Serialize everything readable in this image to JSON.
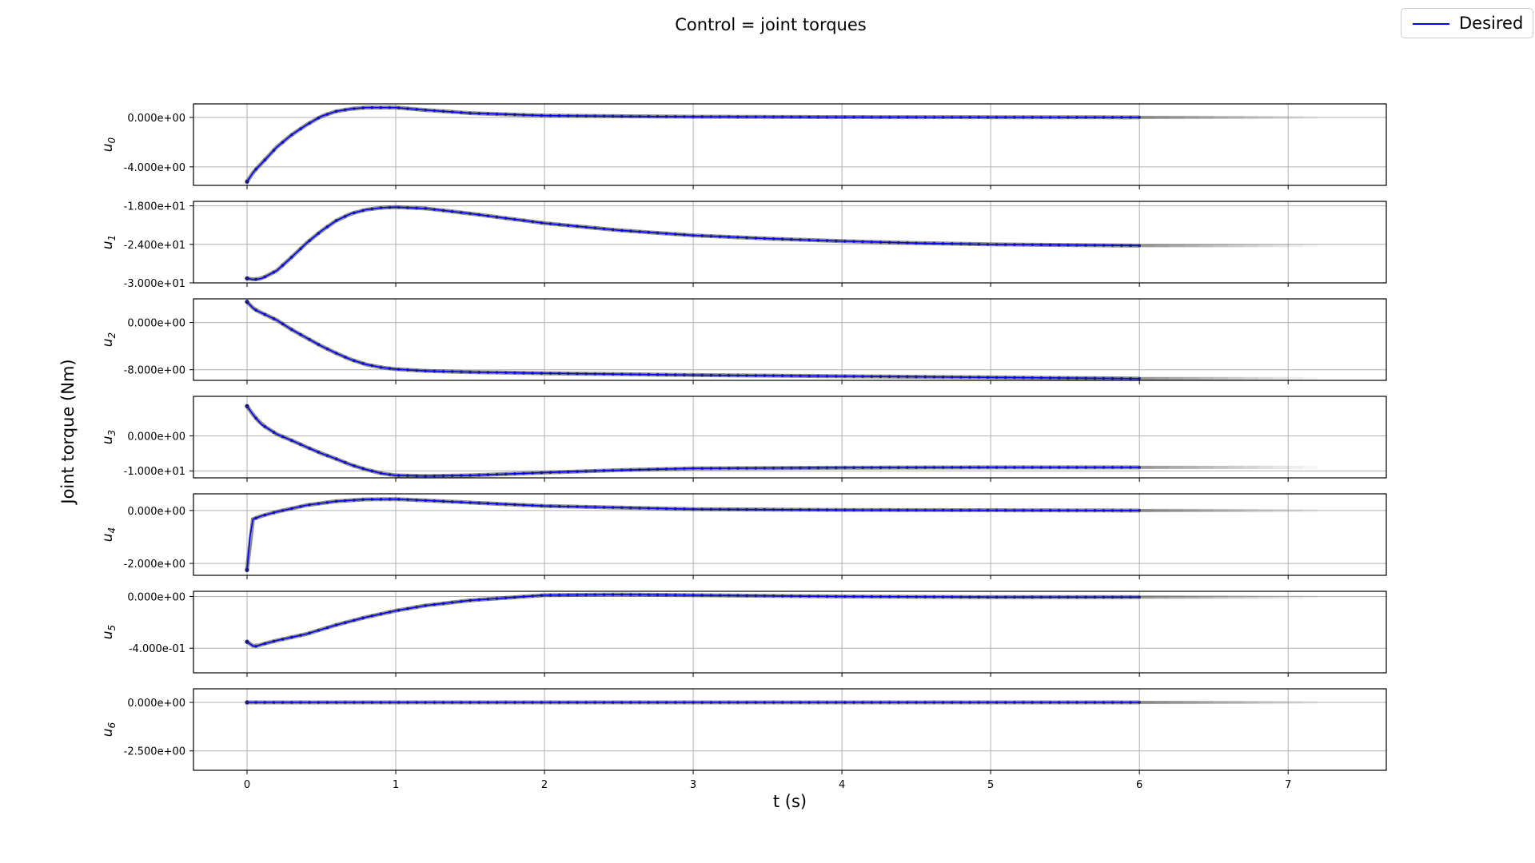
{
  "figure": {
    "title": "Control = joint torques",
    "ylabel": "Joint torque (Nm)",
    "xlabel": "t (s)"
  },
  "legend": {
    "label": "Desired",
    "color": "#0000ff"
  },
  "colors": {
    "desired": "#0000ff",
    "predicted": "#333333",
    "grid": "#b0b0b0"
  },
  "chart_data": {
    "type": "line",
    "title": "Control = joint torques",
    "xlabel": "t (s)",
    "ylabel": "Joint torque (Nm)",
    "xlim": [
      -0.36,
      7.66
    ],
    "xticks": [
      0,
      1,
      2,
      3,
      4,
      5,
      6,
      7
    ],
    "grid": true,
    "legend_position": "top-right",
    "sharex": true,
    "subplots": [
      {
        "label": "u_0",
        "ylim": [
          -5.5,
          1.1
        ],
        "yticks": [
          0,
          -4
        ],
        "yticklabels": [
          "0.000e+00",
          "-4.000e+00"
        ],
        "desired": {
          "x": [
            0,
            0.05,
            0.1,
            0.2,
            0.3,
            0.4,
            0.5,
            0.6,
            0.7,
            0.8,
            0.9,
            1.0,
            1.2,
            1.5,
            2.0,
            2.5,
            3.0,
            4.0,
            5.0,
            6.0
          ],
          "y": [
            -5.2,
            -4.3,
            -3.7,
            -2.4,
            -1.4,
            -0.6,
            0.1,
            0.5,
            0.7,
            0.8,
            0.8,
            0.8,
            0.6,
            0.35,
            0.15,
            0.1,
            0.06,
            0.03,
            0.02,
            0.01
          ]
        }
      },
      {
        "label": "u_1",
        "ylim": [
          -30.0,
          -17.3
        ],
        "yticks": [
          -18,
          -24,
          -30
        ],
        "yticklabels": [
          "-1.800e+01",
          "-2.400e+01",
          "-3.000e+01"
        ],
        "desired": {
          "x": [
            0,
            0.05,
            0.1,
            0.2,
            0.3,
            0.4,
            0.5,
            0.6,
            0.7,
            0.8,
            0.9,
            1.0,
            1.2,
            1.5,
            2.0,
            2.5,
            3.0,
            3.5,
            4.0,
            4.5,
            5.0,
            5.5,
            6.0
          ],
          "y": [
            -29.3,
            -29.5,
            -29.3,
            -28.1,
            -26.0,
            -23.8,
            -21.9,
            -20.3,
            -19.2,
            -18.6,
            -18.3,
            -18.2,
            -18.4,
            -19.2,
            -20.7,
            -21.8,
            -22.6,
            -23.1,
            -23.5,
            -23.8,
            -24.0,
            -24.1,
            -24.2
          ]
        }
      },
      {
        "label": "u_2",
        "ylim": [
          -9.8,
          4.0
        ],
        "yticks": [
          0,
          -8
        ],
        "yticklabels": [
          "0.000e+00",
          "-8.000e+00"
        ],
        "desired": {
          "x": [
            0,
            0.05,
            0.1,
            0.2,
            0.3,
            0.4,
            0.5,
            0.6,
            0.7,
            0.8,
            0.9,
            1.0,
            1.2,
            1.5,
            2.0,
            3.0,
            4.0,
            5.0,
            6.0
          ],
          "y": [
            3.5,
            2.2,
            1.6,
            0.4,
            -1.2,
            -2.6,
            -4.0,
            -5.2,
            -6.3,
            -7.1,
            -7.6,
            -7.9,
            -8.2,
            -8.4,
            -8.6,
            -8.9,
            -9.1,
            -9.3,
            -9.5
          ]
        }
      },
      {
        "label": "u_3",
        "ylim": [
          -12.0,
          11.3
        ],
        "yticks": [
          0,
          -10
        ],
        "yticklabels": [
          "0.000e+00",
          "-1.000e+01"
        ],
        "desired": {
          "x": [
            0,
            0.05,
            0.1,
            0.2,
            0.3,
            0.4,
            0.5,
            0.6,
            0.7,
            0.8,
            0.9,
            1.0,
            1.2,
            1.5,
            2.0,
            2.5,
            3.0,
            4.0,
            5.0,
            6.0
          ],
          "y": [
            8.5,
            5.5,
            3.2,
            0.5,
            -1.3,
            -3.2,
            -5.0,
            -6.6,
            -8.3,
            -9.6,
            -10.7,
            -11.3,
            -11.5,
            -11.3,
            -10.5,
            -9.8,
            -9.3,
            -9.1,
            -9.0,
            -9.0
          ]
        }
      },
      {
        "label": "u_4",
        "ylim": [
          -2.45,
          0.63
        ],
        "yticks": [
          0,
          -2
        ],
        "yticklabels": [
          "0.000e+00",
          "-2.000e+00"
        ],
        "desired": {
          "x": [
            0,
            0.03,
            0.1,
            0.2,
            0.4,
            0.6,
            0.8,
            1.0,
            1.2,
            1.5,
            2.0,
            3.0,
            4.0,
            5.0,
            6.0
          ],
          "y": [
            -2.25,
            -0.35,
            -0.2,
            -0.05,
            0.2,
            0.35,
            0.42,
            0.43,
            0.38,
            0.3,
            0.17,
            0.05,
            0.02,
            0.01,
            0.0
          ]
        }
      },
      {
        "label": "u_5",
        "ylim": [
          -0.59,
          0.04
        ],
        "yticks": [
          0,
          -0.4
        ],
        "yticklabels": [
          "0.000e+00",
          "-4.000e-01"
        ],
        "desired": {
          "x": [
            0,
            0.05,
            0.1,
            0.2,
            0.4,
            0.6,
            0.8,
            1.0,
            1.2,
            1.5,
            2.0,
            2.5,
            3.0,
            4.0,
            5.0,
            6.0
          ],
          "y": [
            -0.35,
            -0.39,
            -0.37,
            -0.34,
            -0.29,
            -0.22,
            -0.16,
            -0.11,
            -0.07,
            -0.03,
            0.01,
            0.015,
            0.01,
            0.0,
            -0.005,
            -0.005
          ]
        }
      },
      {
        "label": "u_6",
        "ylim": [
          -3.5,
          0.7
        ],
        "yticks": [
          0,
          -2.5
        ],
        "yticklabels": [
          "0.000e+00",
          "-2.500e+00"
        ],
        "desired": {
          "x": [
            0,
            6
          ],
          "y": [
            0,
            0
          ]
        }
      }
    ]
  }
}
